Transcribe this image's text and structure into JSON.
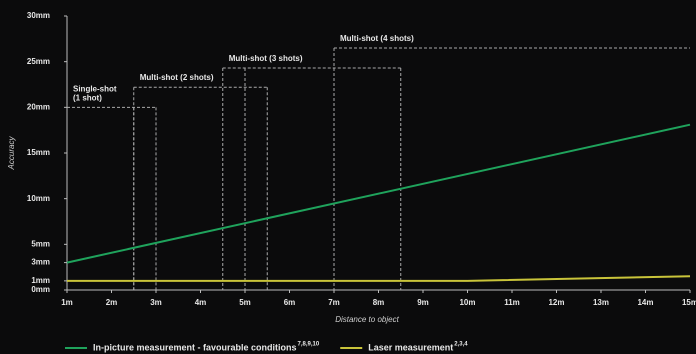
{
  "chart_data": {
    "type": "line",
    "x_label": "Distance to object",
    "y_label": "Accuracy",
    "xlim": [
      1,
      15
    ],
    "ylim": [
      0,
      30
    ],
    "xticks": [
      {
        "value": 1,
        "label": "1m"
      },
      {
        "value": 2,
        "label": "2m"
      },
      {
        "value": 3,
        "label": "3m"
      },
      {
        "value": 4,
        "label": "4m"
      },
      {
        "value": 5,
        "label": "5m"
      },
      {
        "value": 6,
        "label": "6m"
      },
      {
        "value": 7,
        "label": "7m"
      },
      {
        "value": 8,
        "label": "8m"
      },
      {
        "value": 9,
        "label": "9m"
      },
      {
        "value": 10,
        "label": "10m"
      },
      {
        "value": 11,
        "label": "11m"
      },
      {
        "value": 12,
        "label": "12m"
      },
      {
        "value": 13,
        "label": "13m"
      },
      {
        "value": 14,
        "label": "14m"
      },
      {
        "value": 15,
        "label": "15m"
      }
    ],
    "yticks": [
      {
        "value": 0,
        "label": "0mm"
      },
      {
        "value": 1,
        "label": "1mm"
      },
      {
        "value": 3,
        "label": "3mm"
      },
      {
        "value": 5,
        "label": "5mm"
      },
      {
        "value": 10,
        "label": "10mm"
      },
      {
        "value": 15,
        "label": "15mm"
      },
      {
        "value": 20,
        "label": "20mm"
      },
      {
        "value": 25,
        "label": "25mm"
      },
      {
        "value": 30,
        "label": "30mm"
      }
    ],
    "series": [
      {
        "name": "In-picture measurement - favourable conditions",
        "footnotes": "7,8,9,10",
        "color": "#1fa35c",
        "x": [
          1,
          15
        ],
        "values": [
          3,
          18.1
        ]
      },
      {
        "name": "Laser measurement",
        "footnotes": "2,3,4",
        "color": "#c9c43a",
        "x": [
          1,
          10,
          15
        ],
        "values": [
          1,
          1,
          1.5
        ]
      }
    ],
    "annotations": [
      {
        "label": "Single-shot\n(1 shot)",
        "y": 20,
        "x": [
          1,
          3
        ],
        "edges": [
          2.5,
          3
        ]
      },
      {
        "label": "Multi-shot (2 shots)",
        "y": 22.2,
        "x": [
          2.5,
          5.5
        ],
        "edges": [
          2.5,
          5.5
        ]
      },
      {
        "label": "Multi-shot (3 shots)",
        "y": 24.3,
        "x": [
          4.5,
          8.5
        ],
        "edges": [
          4.5,
          5,
          8.5
        ]
      },
      {
        "label": "Multi-shot (4 shots)",
        "y": 26.5,
        "x": [
          7,
          15
        ],
        "edges": [
          7
        ]
      }
    ]
  }
}
